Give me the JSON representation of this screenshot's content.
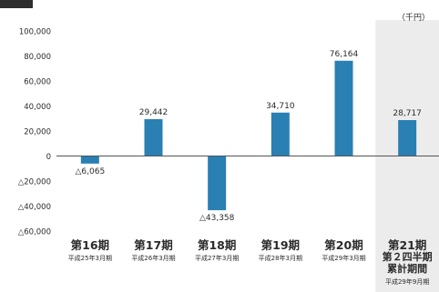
{
  "chart_data": {
    "type": "bar",
    "unit_label": "（千円）",
    "categories": [
      {
        "label": "第16期",
        "sub": [
          "平成25年3月期"
        ]
      },
      {
        "label": "第17期",
        "sub": [
          "平成26年3月期"
        ]
      },
      {
        "label": "第18期",
        "sub": [
          "平成27年3月期"
        ]
      },
      {
        "label": "第19期",
        "sub": [
          "平成28年3月期"
        ]
      },
      {
        "label": "第20期",
        "sub": [
          "平成29年3月期"
        ]
      },
      {
        "label": "第21期",
        "sub": [
          "第２四半期",
          "累計期間",
          "平成29年9月期"
        ]
      }
    ],
    "values": [
      -6065,
      29442,
      -43358,
      34710,
      76164,
      28717
    ],
    "value_labels": [
      "△6,065",
      "29,442",
      "△43,358",
      "34,710",
      "76,164",
      "28,717"
    ],
    "yticks": [
      100000,
      80000,
      60000,
      40000,
      20000,
      0,
      -20000,
      -40000,
      -60000
    ],
    "ytick_labels": [
      "100,000",
      "80,000",
      "60,000",
      "40,000",
      "20,000",
      "0",
      "△20,000",
      "△40,000",
      "△60,000"
    ],
    "ylim": [
      -60000,
      100000
    ],
    "grid": false,
    "highlight_category_index": 5,
    "colors": {
      "bar": "#2a7fb3",
      "highlight_band": "#ececec",
      "axis": "#555555",
      "header_block": "#2e2e2e"
    }
  }
}
